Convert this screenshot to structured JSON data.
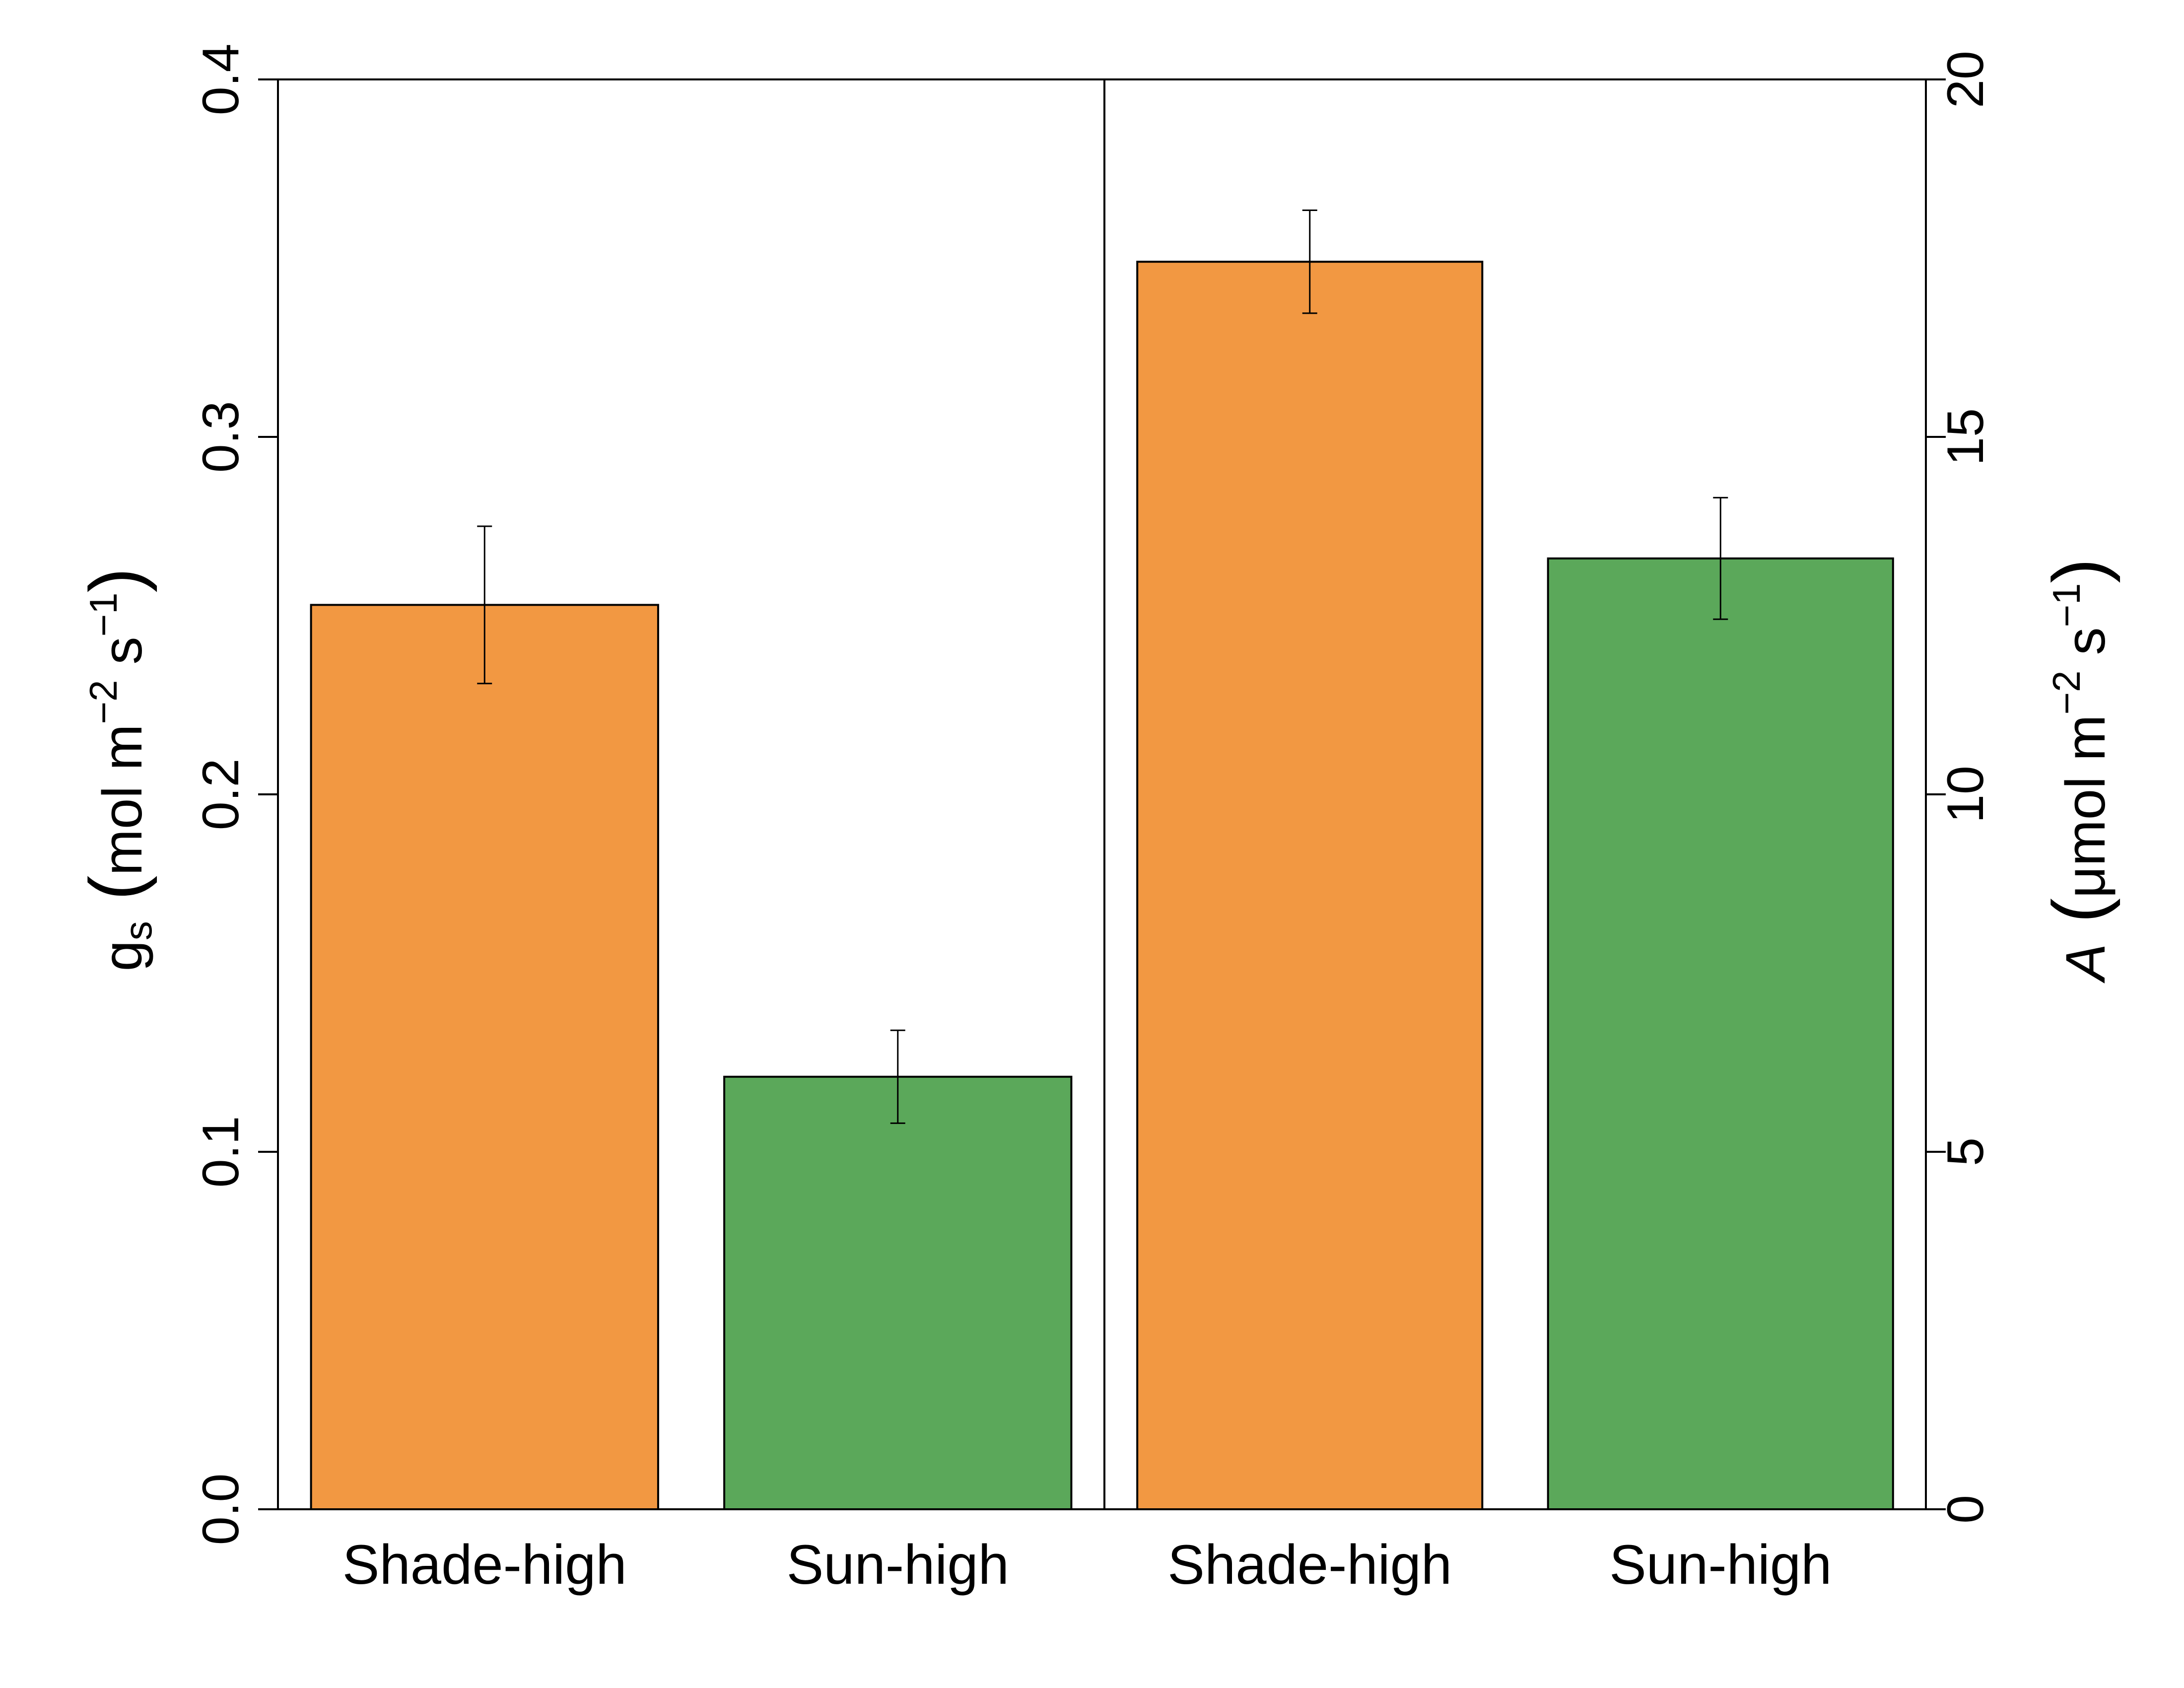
{
  "chart_data": {
    "type": "bar",
    "panels": [
      {
        "axis": "left",
        "ylabel_main": "g",
        "ylabel_sub": "s",
        "ylabel_units": "mol m",
        "ylim": [
          0,
          0.4
        ],
        "yticks": [
          "0.0",
          "0.1",
          "0.2",
          "0.3",
          "0.4"
        ],
        "categories": [
          "Shade-high",
          "Sun-high"
        ],
        "values": [
          0.253,
          0.121
        ],
        "errors": [
          0.022,
          0.013
        ]
      },
      {
        "axis": "right",
        "ylabel_main": "A",
        "ylabel_units": "μmol m",
        "ylim": [
          0,
          20
        ],
        "yticks": [
          "0",
          "5",
          "10",
          "15",
          "20"
        ],
        "categories": [
          "Shade-high",
          "Sun-high"
        ],
        "values": [
          17.45,
          13.3
        ],
        "errors": [
          0.72,
          0.85
        ]
      }
    ],
    "unit_exp_m": "−2",
    "unit_s": "s",
    "unit_exp_s": "−1",
    "colors": {
      "Shade-high": "#F29842",
      "Sun-high": "#5BA85A"
    },
    "grid": false
  }
}
